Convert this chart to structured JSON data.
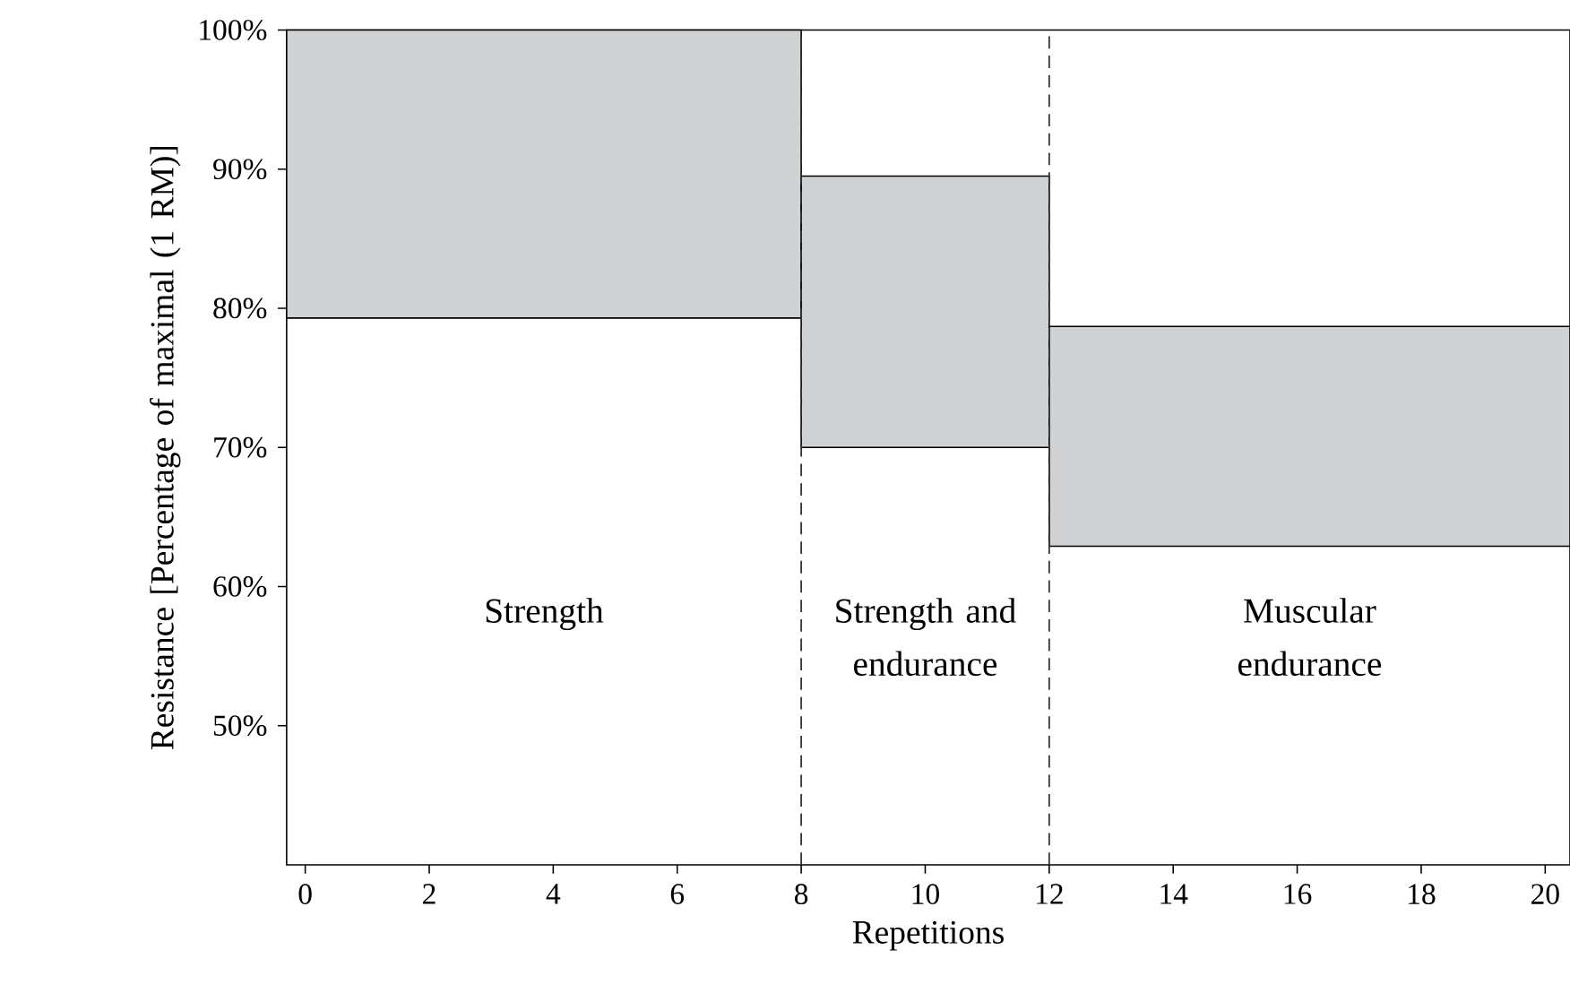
{
  "chart_data": {
    "type": "histogram",
    "xlabel": "Repetitions",
    "ylabel": "Resistance [Percentage of maximal (1 RM)]",
    "bins": [
      -0.3,
      8,
      12,
      20.4
    ],
    "values": [
      20.7,
      19.5,
      15.8
    ],
    "base": [
      79.3,
      70,
      62.9
    ],
    "color": "#d1d2d4",
    "xlim": [
      -0.3,
      20.4
    ],
    "ylim": [
      40,
      100
    ],
    "xticks": [
      0,
      2,
      4,
      6,
      8,
      10,
      12,
      14,
      16,
      18,
      20
    ],
    "yticks": [
      {
        "value": 50,
        "label": "50%"
      },
      {
        "value": 60,
        "label": "60%"
      },
      {
        "value": 70,
        "label": "70%"
      },
      {
        "value": 80,
        "label": "80%"
      },
      {
        "value": 90,
        "label": "90%"
      },
      {
        "value": 100,
        "label": "100%"
      }
    ],
    "ref_lines": [
      {
        "axis": "x",
        "value": 8,
        "line_style": "dashed",
        "color": "#333333"
      },
      {
        "axis": "x",
        "value": 12,
        "line_style": "dashed",
        "color": "#333333"
      }
    ],
    "annotations": [
      "Strength",
      "Strength and endurance",
      "Muscular endurance"
    ]
  }
}
